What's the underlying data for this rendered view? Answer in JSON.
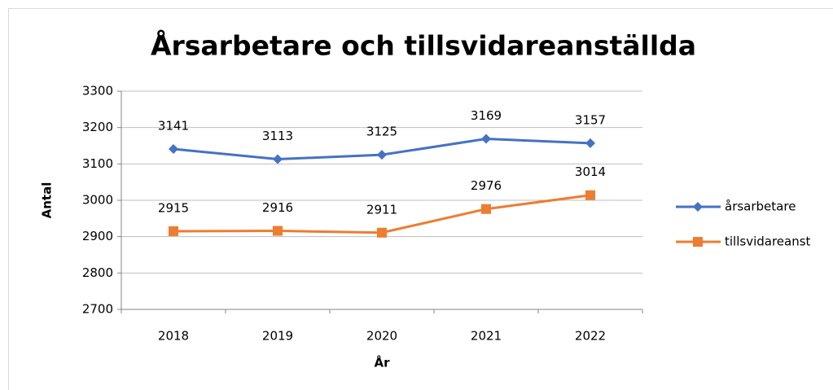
{
  "chart_data": {
    "type": "line",
    "title": "Årsarbetare och tillsvidareanställda",
    "x_label": "År",
    "y_label": "Antal",
    "categories": [
      "2018",
      "2019",
      "2020",
      "2021",
      "2022"
    ],
    "series": [
      {
        "name": "årsarbetare",
        "color": "#4472c4",
        "marker": "diamond",
        "values": [
          3141,
          3113,
          3125,
          3169,
          3157
        ]
      },
      {
        "name": "tillsvidareanst",
        "color": "#ed7d31",
        "marker": "square",
        "values": [
          2915,
          2916,
          2911,
          2976,
          3014
        ]
      }
    ],
    "ylim": [
      2700,
      3300
    ],
    "yticks": [
      2700,
      2800,
      2900,
      3000,
      3100,
      3200,
      3300
    ],
    "grid": true,
    "legend": "right"
  }
}
